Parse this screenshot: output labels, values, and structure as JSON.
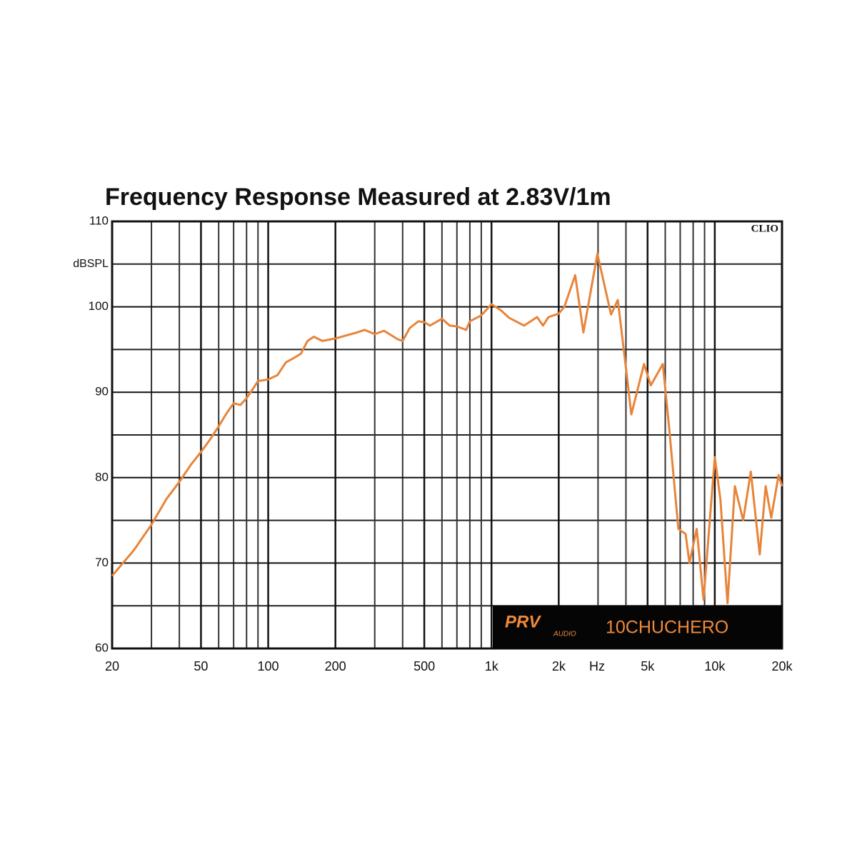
{
  "chart_data": {
    "type": "line",
    "title": "Frequency Response Measured at 2.83V/1m",
    "y_label": "dBSPL",
    "x_label": "Hz",
    "watermark": "CLIO",
    "brand": "PRV",
    "brand_sub": "AUDIO",
    "model": "10CHUCHERO",
    "xscale": "log",
    "xlim": [
      20,
      20000
    ],
    "ylim": [
      60,
      110
    ],
    "xticks": [
      20,
      50,
      100,
      200,
      500,
      {
        "value": 1000,
        "label": "1k"
      },
      {
        "value": 2000,
        "label": "2k"
      },
      {
        "value": 5000,
        "label": "5k"
      },
      {
        "value": 10000,
        "label": "10k"
      },
      {
        "value": 20000,
        "label": "20k"
      }
    ],
    "xminor": [
      30,
      40,
      60,
      70,
      80,
      90,
      300,
      400,
      600,
      700,
      800,
      900,
      3000,
      4000,
      6000,
      7000,
      8000,
      9000
    ],
    "yticks": [
      60,
      70,
      80,
      90,
      100,
      110
    ],
    "yminor": [
      65,
      75,
      85,
      95,
      105
    ],
    "grid": true,
    "color": "#e8843a",
    "x": [
      20,
      25,
      30,
      35,
      40,
      45,
      50,
      55,
      60,
      65,
      70,
      75,
      80,
      85,
      90,
      100,
      110,
      120,
      130,
      140,
      150,
      160,
      175,
      200,
      220,
      250,
      270,
      300,
      330,
      380,
      400,
      430,
      470,
      500,
      530,
      600,
      650,
      700,
      770,
      800,
      900,
      1000,
      1100,
      1200,
      1400,
      1600,
      1700,
      1800,
      2000,
      2120,
      2370,
      2580,
      2980,
      3430,
      3680,
      4020,
      4230,
      4820,
      5170,
      5850,
      6250,
      6870,
      7400,
      7700,
      8300,
      8900,
      10000,
      10600,
      11400,
      12300,
      13400,
      14500,
      15900,
      16900,
      17900,
      19300,
      20000
    ],
    "values": [
      68.5,
      71.5,
      74.5,
      77.5,
      79.5,
      81.5,
      83,
      84.5,
      86,
      87.5,
      88.7,
      88.5,
      89.3,
      90.3,
      91.3,
      91.5,
      92,
      93.5,
      94,
      94.5,
      96,
      96.5,
      96,
      96.3,
      96.6,
      97,
      97.3,
      96.8,
      97.2,
      96.2,
      96,
      97.5,
      98.3,
      98.2,
      97.8,
      98.6,
      97.8,
      97.7,
      97.3,
      98.3,
      99,
      100.3,
      99.6,
      98.7,
      97.8,
      98.8,
      97.8,
      98.8,
      99.2,
      100,
      103.7,
      97,
      106.2,
      99.1,
      100.8,
      92.4,
      87.4,
      93.3,
      90.8,
      93.3,
      85.7,
      74,
      73.4,
      70,
      74,
      65.7,
      82.4,
      77.4,
      65.3,
      79,
      75,
      80.7,
      71,
      79,
      75.3,
      80.3,
      79
    ]
  }
}
